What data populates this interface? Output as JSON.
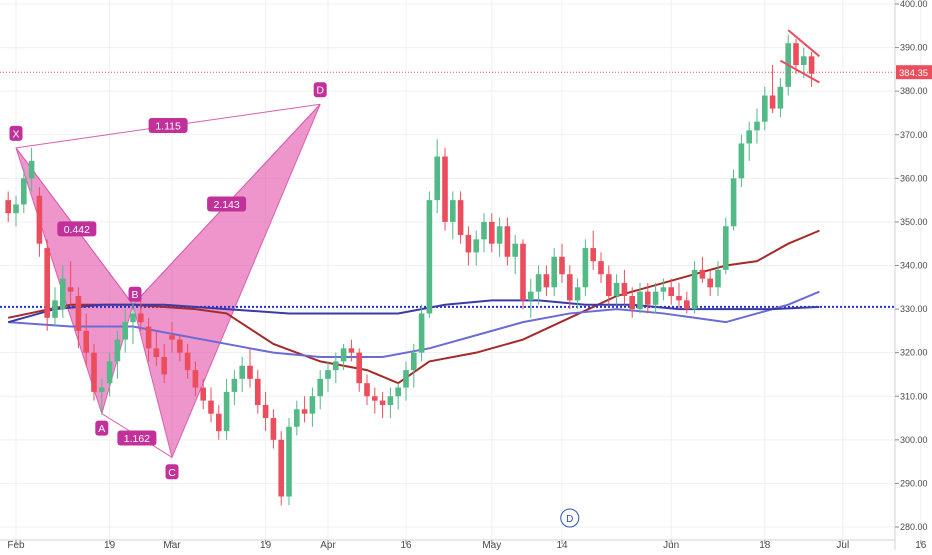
{
  "chart_data": {
    "type": "candlestick",
    "y_axis": {
      "min": 280,
      "max": 400,
      "ticks": [
        280,
        290,
        300,
        310,
        320,
        330,
        340,
        350,
        360,
        370,
        380,
        390,
        400
      ],
      "tick_format": "fixed2",
      "position": "right"
    },
    "x_axis": {
      "labels": [
        "Feb",
        "19",
        "Mar",
        "19",
        "Apr",
        "16",
        "May",
        "14",
        "Jun",
        "18",
        "Jul",
        "16"
      ],
      "label_bar_index": [
        1,
        13,
        21,
        33,
        41,
        51,
        62,
        71,
        85,
        97,
        107,
        117
      ]
    },
    "grid": true,
    "colors": {
      "up": "#53b987",
      "down": "#eb4d5c",
      "pattern_fill": "#e040a0",
      "pattern_line": "#d85fb0",
      "label_bg": "#c2309a",
      "ma_fast": "#a52a2a",
      "ma_slow": "#3a3aa8",
      "ma_mid": "#6b6bd6",
      "support_line": "#2230d0",
      "price_line": "#eb4d5c",
      "axis_text": "#4a4a4a",
      "grid": "#eef0f3"
    },
    "current_price": {
      "value": 384.35,
      "label": "384.35"
    },
    "support_level": 330.5,
    "candles": [
      [
        0,
        355,
        357,
        350,
        352
      ],
      [
        1,
        352,
        356,
        349,
        354
      ],
      [
        2,
        354,
        362,
        352,
        360
      ],
      [
        3,
        360,
        367,
        357,
        364
      ],
      [
        4,
        356,
        358,
        342,
        345
      ],
      [
        5,
        344,
        346,
        325,
        328
      ],
      [
        6,
        328,
        335,
        326,
        332
      ],
      [
        7,
        330,
        340,
        328,
        337
      ],
      [
        8,
        335,
        341,
        331,
        334
      ],
      [
        9,
        333,
        335,
        321,
        325
      ],
      [
        10,
        325,
        329,
        317,
        320
      ],
      [
        11,
        320,
        322,
        309,
        311
      ],
      [
        12,
        311,
        314,
        306,
        312
      ],
      [
        13,
        313,
        320,
        310,
        318
      ],
      [
        14,
        318,
        325,
        314,
        323
      ],
      [
        15,
        323,
        330,
        320,
        327
      ],
      [
        16,
        327,
        333,
        322,
        329
      ],
      [
        17,
        329,
        333,
        325,
        327
      ],
      [
        18,
        326,
        328,
        318,
        321
      ],
      [
        19,
        321,
        325,
        317,
        319
      ],
      [
        20,
        319,
        322,
        313,
        315
      ],
      [
        21,
        324,
        327,
        320,
        323
      ],
      [
        22,
        323,
        324,
        318,
        320
      ],
      [
        23,
        320,
        322,
        314,
        316
      ],
      [
        24,
        316,
        318,
        310,
        312
      ],
      [
        25,
        312,
        314,
        307,
        309
      ],
      [
        26,
        309,
        312,
        304,
        306
      ],
      [
        27,
        306,
        308,
        300,
        302
      ],
      [
        28,
        302,
        314,
        300,
        311
      ],
      [
        29,
        311,
        316,
        308,
        314
      ],
      [
        30,
        314,
        319,
        311,
        317
      ],
      [
        31,
        317,
        321,
        312,
        314
      ],
      [
        32,
        314,
        316,
        306,
        308
      ],
      [
        33,
        308,
        311,
        302,
        305
      ],
      [
        34,
        305,
        307,
        298,
        300
      ],
      [
        35,
        300,
        302,
        285,
        287
      ],
      [
        36,
        287,
        305,
        285,
        303
      ],
      [
        37,
        303,
        309,
        301,
        307
      ],
      [
        38,
        307,
        310,
        304,
        306
      ],
      [
        39,
        306,
        312,
        303,
        310
      ],
      [
        40,
        310,
        316,
        307,
        314
      ],
      [
        41,
        314,
        318,
        311,
        316
      ],
      [
        42,
        316,
        320,
        313,
        318
      ],
      [
        43,
        318,
        322,
        316,
        321
      ],
      [
        44,
        321,
        323,
        318,
        320
      ],
      [
        45,
        320,
        321,
        311,
        313
      ],
      [
        46,
        313,
        315,
        308,
        310
      ],
      [
        47,
        310,
        312,
        306,
        309
      ],
      [
        48,
        309,
        311,
        305,
        308
      ],
      [
        49,
        308,
        312,
        305,
        310
      ],
      [
        50,
        310,
        313,
        307,
        312
      ],
      [
        51,
        312,
        318,
        309,
        316
      ],
      [
        52,
        316,
        322,
        312,
        320
      ],
      [
        53,
        320,
        331,
        318,
        329
      ],
      [
        54,
        329,
        357,
        328,
        355
      ],
      [
        55,
        355,
        369,
        352,
        365
      ],
      [
        56,
        365,
        367,
        348,
        350
      ],
      [
        57,
        350,
        357,
        346,
        355
      ],
      [
        58,
        355,
        357,
        345,
        347
      ],
      [
        59,
        347,
        349,
        340,
        343
      ],
      [
        60,
        343,
        348,
        340,
        346
      ],
      [
        61,
        346,
        352,
        343,
        350
      ],
      [
        62,
        350,
        352,
        343,
        345
      ],
      [
        63,
        345,
        351,
        342,
        349
      ],
      [
        64,
        349,
        351,
        340,
        342
      ],
      [
        65,
        342,
        347,
        338,
        345
      ],
      [
        66,
        345,
        346,
        330,
        332
      ],
      [
        67,
        332,
        337,
        328,
        334
      ],
      [
        68,
        334,
        340,
        331,
        338
      ],
      [
        69,
        338,
        340,
        333,
        335
      ],
      [
        70,
        335,
        344,
        333,
        342
      ],
      [
        71,
        342,
        345,
        336,
        338
      ],
      [
        72,
        338,
        340,
        330,
        332
      ],
      [
        73,
        332,
        337,
        330,
        335
      ],
      [
        74,
        335,
        346,
        333,
        344
      ],
      [
        75,
        344,
        348,
        339,
        341
      ],
      [
        76,
        341,
        343,
        336,
        338
      ],
      [
        77,
        338,
        340,
        331,
        333
      ],
      [
        78,
        333,
        338,
        331,
        336
      ],
      [
        79,
        336,
        339,
        331,
        333
      ],
      [
        80,
        333,
        335,
        328,
        330
      ],
      [
        81,
        330,
        336,
        329,
        334
      ],
      [
        82,
        334,
        336,
        329,
        331
      ],
      [
        83,
        331,
        336,
        329,
        334
      ],
      [
        84,
        334,
        337,
        332,
        335
      ],
      [
        85,
        335,
        337,
        331,
        333
      ],
      [
        86,
        333,
        336,
        330,
        332
      ],
      [
        87,
        332,
        334,
        329,
        330
      ],
      [
        88,
        330,
        341,
        329,
        339
      ],
      [
        89,
        339,
        342,
        336,
        337
      ],
      [
        90,
        337,
        339,
        333,
        335
      ],
      [
        91,
        335,
        341,
        333,
        339
      ],
      [
        92,
        339,
        351,
        338,
        349
      ],
      [
        93,
        349,
        362,
        348,
        360
      ],
      [
        94,
        360,
        370,
        358,
        368
      ],
      [
        95,
        368,
        373,
        364,
        371
      ],
      [
        96,
        371,
        376,
        368,
        373
      ],
      [
        97,
        373,
        381,
        371,
        379
      ],
      [
        98,
        379,
        386,
        375,
        376
      ],
      [
        99,
        376,
        383,
        374,
        381
      ],
      [
        100,
        381,
        393,
        379,
        391
      ],
      [
        101,
        391,
        392,
        384,
        386
      ],
      [
        102,
        386,
        390,
        383,
        388
      ],
      [
        103,
        388,
        389,
        381,
        384
      ]
    ],
    "moving_averages": [
      {
        "color_key": "ma_fast",
        "points": [
          [
            0,
            328
          ],
          [
            8,
            331
          ],
          [
            16,
            331
          ],
          [
            24,
            330
          ],
          [
            28,
            329
          ],
          [
            34,
            322
          ],
          [
            40,
            318
          ],
          [
            46,
            316
          ],
          [
            50,
            313
          ],
          [
            54,
            318
          ],
          [
            60,
            320
          ],
          [
            66,
            323
          ],
          [
            72,
            328
          ],
          [
            78,
            333
          ],
          [
            84,
            336
          ],
          [
            88,
            338
          ],
          [
            92,
            340
          ],
          [
            96,
            341
          ],
          [
            100,
            345
          ],
          [
            104,
            348
          ]
        ]
      },
      {
        "color_key": "ma_mid",
        "points": [
          [
            0,
            327
          ],
          [
            8,
            326
          ],
          [
            16,
            326
          ],
          [
            22,
            324
          ],
          [
            28,
            322
          ],
          [
            34,
            320
          ],
          [
            40,
            319
          ],
          [
            48,
            319
          ],
          [
            54,
            321
          ],
          [
            60,
            324
          ],
          [
            66,
            327
          ],
          [
            72,
            329
          ],
          [
            78,
            330
          ],
          [
            84,
            329
          ],
          [
            88,
            328
          ],
          [
            92,
            327
          ],
          [
            96,
            329
          ],
          [
            100,
            331
          ],
          [
            104,
            334
          ]
        ]
      },
      {
        "color_key": "ma_slow",
        "points": [
          [
            0,
            327
          ],
          [
            6,
            330
          ],
          [
            12,
            331
          ],
          [
            20,
            331
          ],
          [
            28,
            330
          ],
          [
            36,
            329
          ],
          [
            44,
            329
          ],
          [
            50,
            329
          ],
          [
            56,
            331
          ],
          [
            62,
            332
          ],
          [
            68,
            332
          ],
          [
            74,
            331
          ],
          [
            80,
            331
          ],
          [
            86,
            330
          ],
          [
            92,
            330
          ],
          [
            98,
            330
          ],
          [
            104,
            330.5
          ]
        ]
      }
    ],
    "pattern": {
      "points": [
        {
          "name": "X",
          "bar": 1,
          "price": 367
        },
        {
          "name": "A",
          "bar": 12,
          "price": 306
        },
        {
          "name": "B",
          "bar": 16,
          "price": 331
        },
        {
          "name": "C",
          "bar": 21,
          "price": 296
        },
        {
          "name": "D",
          "bar": 40,
          "price": 377
        }
      ],
      "ratios": [
        {
          "label": "1.115",
          "from": "X",
          "to": "D"
        },
        {
          "label": "0.442",
          "from": "X",
          "to": "B"
        },
        {
          "label": "2.143",
          "from": "B",
          "to": "D"
        },
        {
          "label": "1.162",
          "from": "A",
          "to": "C"
        }
      ]
    },
    "flag": {
      "upper": [
        [
          100,
          394
        ],
        [
          104,
          388
        ]
      ],
      "lower": [
        [
          99,
          387
        ],
        [
          104,
          382
        ]
      ]
    },
    "event_marker": {
      "bar": 72,
      "label": "D"
    }
  }
}
